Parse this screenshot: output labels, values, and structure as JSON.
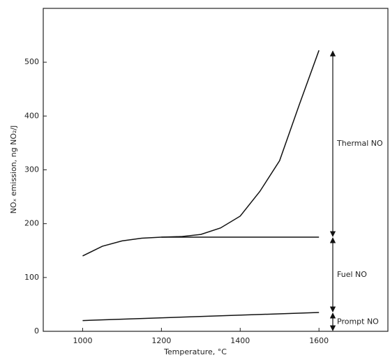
{
  "chart_data": {
    "type": "line",
    "x_label": "Temperature, °C",
    "y_label": "NOₓ emission, ng NO₂/J",
    "xlim": [
      900,
      1775
    ],
    "xticks": [
      1000,
      1200,
      1400,
      1600
    ],
    "ylim": [
      0,
      600
    ],
    "yticks": [
      0,
      100,
      200,
      300,
      400,
      500
    ],
    "series": [
      {
        "name": "Thermal NO",
        "color": "#111111",
        "x": [
          1200,
          1250,
          1300,
          1350,
          1400,
          1450,
          1500,
          1550,
          1600
        ],
        "values": [
          175,
          176,
          180,
          192,
          214,
          260,
          317,
          421,
          522
        ]
      },
      {
        "name": "Fuel NO",
        "color": "#111111",
        "x": [
          1000,
          1050,
          1100,
          1150,
          1200,
          1300,
          1400,
          1500,
          1600
        ],
        "values": [
          140,
          158,
          168,
          173,
          175,
          175,
          175,
          175,
          175
        ]
      },
      {
        "name": "Prompt NO",
        "color": "#111111",
        "x": [
          1000,
          1600
        ],
        "values": [
          20,
          35
        ]
      }
    ]
  }
}
